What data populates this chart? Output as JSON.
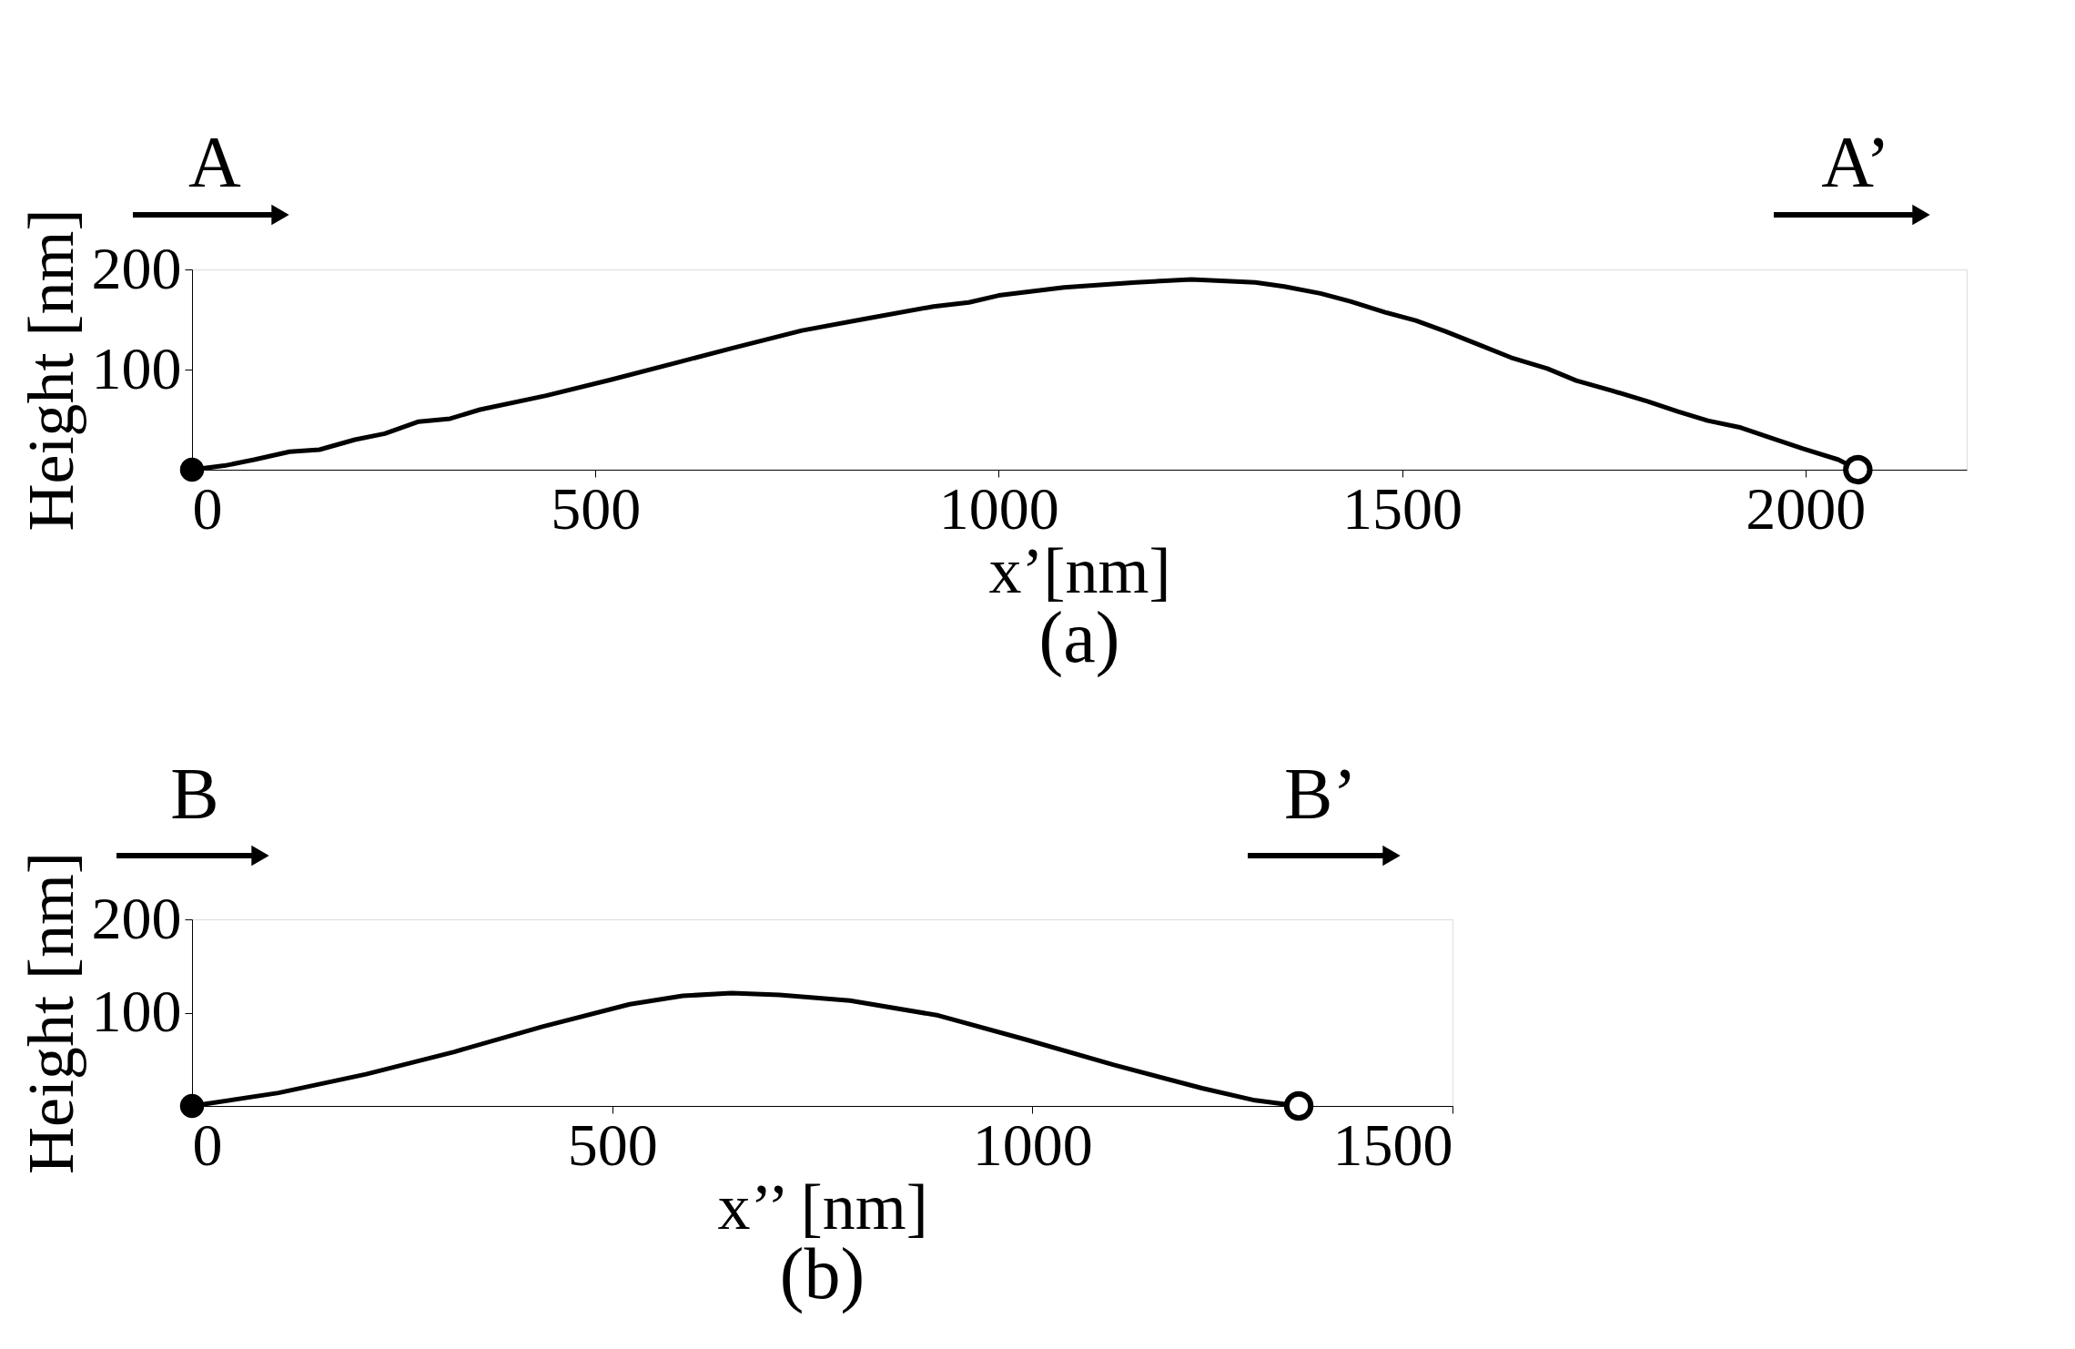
{
  "chart_data": [
    {
      "type": "line",
      "title": "(a)",
      "xlabel": "x’[nm]",
      "ylabel": "Height [nm]",
      "xlim": [
        0,
        2200
      ],
      "ylim": [
        0,
        200
      ],
      "xticks": [
        0,
        500,
        1000,
        1500,
        2000
      ],
      "yticks": [
        {
          "value": 0,
          "label": null
        },
        100,
        200
      ],
      "grid": false,
      "line_style": "solid",
      "annotations": [
        "A",
        "A’"
      ],
      "series": [
        {
          "color": "#000000",
          "x": [
            0,
            40,
            77,
            121,
            158,
            202,
            239,
            281,
            320,
            357,
            439,
            520,
            601,
            668,
            756,
            830,
            919,
            963,
            1000,
            1081,
            1170,
            1239,
            1318,
            1354,
            1399,
            1436,
            1480,
            1517,
            1554,
            1598,
            1635,
            1680,
            1716,
            1760,
            1805,
            1842,
            1879,
            1920,
            1960,
            1997,
            2041,
            2065
          ],
          "values": [
            0,
            4,
            10,
            18,
            20,
            30,
            36,
            48,
            51,
            60,
            74,
            90,
            107,
            121,
            139,
            150,
            163,
            167,
            174,
            182,
            187,
            190,
            187,
            183,
            176,
            168,
            157,
            149,
            138,
            124,
            112,
            101,
            89,
            79,
            68,
            58,
            49,
            42,
            31,
            21,
            10,
            0
          ]
        },
        {
          "type": "scatter",
          "marker": "circle",
          "color": "#000000",
          "x": [
            0
          ],
          "values": [
            0
          ]
        },
        {
          "type": "scatter",
          "marker": "circle",
          "color": "#000000",
          "x": [
            2065
          ],
          "values": [
            0
          ]
        }
      ]
    },
    {
      "type": "line",
      "title": "(b)",
      "xlabel": "x’’ [nm]",
      "ylabel": "Height [nm]",
      "xlim": [
        0,
        1500
      ],
      "ylim": [
        0,
        200
      ],
      "xticks": [
        0,
        500,
        1000,
        1500
      ],
      "yticks": [
        {
          "value": 0,
          "label": null
        },
        100,
        200
      ],
      "grid": false,
      "line_style": "solid",
      "annotations": [
        "B",
        "B’"
      ],
      "series": [
        {
          "color": "#000000",
          "x": [
            0,
            103,
            207,
            312,
            417,
            521,
            584,
            642,
            699,
            783,
            888,
            993,
            1097,
            1202,
            1265,
            1317
          ],
          "values": [
            0,
            14,
            34,
            58,
            85,
            109,
            118,
            121,
            119,
            113,
            97,
            71,
            44,
            19,
            6,
            0
          ]
        },
        {
          "type": "scatter",
          "marker": "circle",
          "color": "#000000",
          "x": [
            0
          ],
          "values": [
            0
          ]
        },
        {
          "type": "scatter",
          "marker": "circle",
          "color": "#000000",
          "x": [
            1317
          ],
          "values": [
            0
          ]
        }
      ]
    }
  ]
}
